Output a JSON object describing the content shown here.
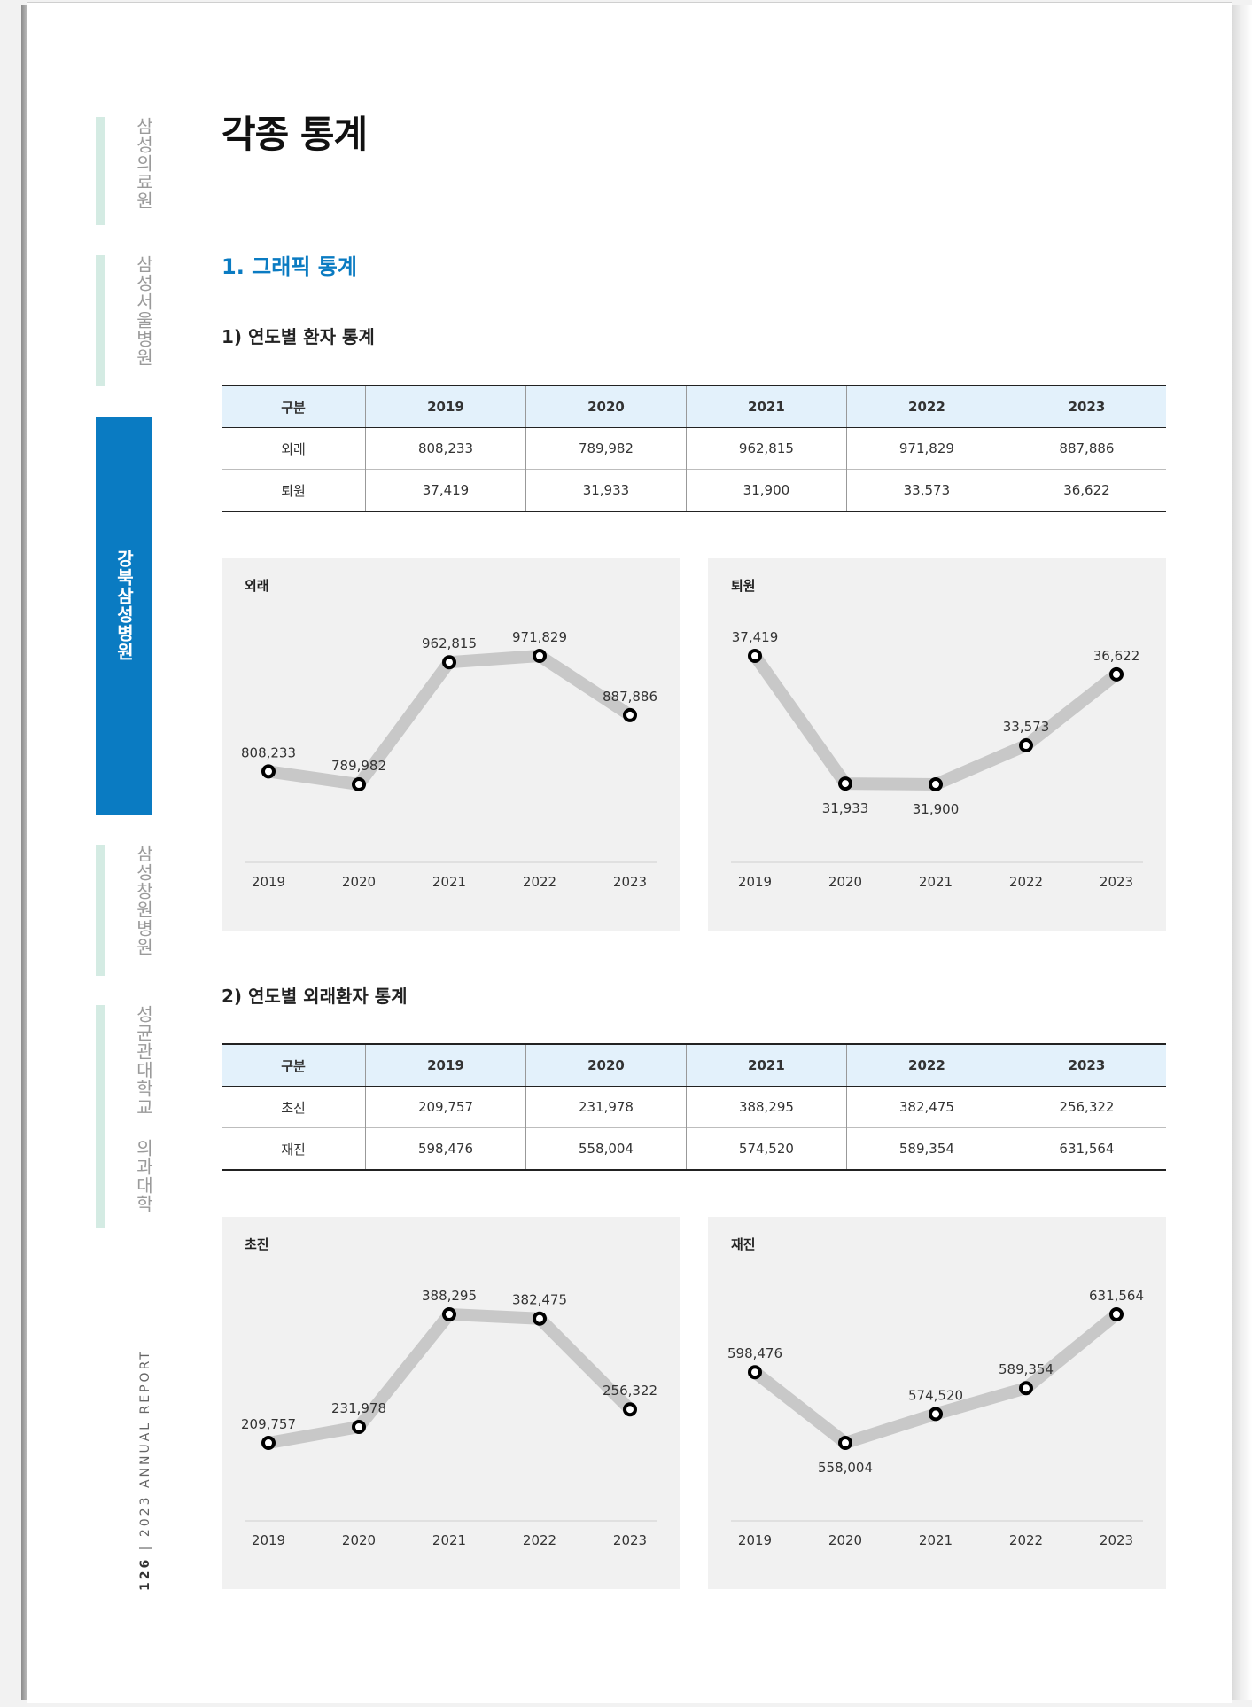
{
  "sidebar": {
    "items": [
      {
        "label": "삼성의료원",
        "active": false
      },
      {
        "label": "삼성서울병원",
        "active": false
      },
      {
        "label": "강북삼성병원",
        "active": true
      },
      {
        "label": "삼성창원병원",
        "active": false
      },
      {
        "label": "성균관대학교 의과대학",
        "active": false
      }
    ],
    "footer_page": "126",
    "footer_separator": "|",
    "footer_text": "2023 ANNUAL REPORT"
  },
  "page": {
    "title": "각종 통계",
    "section_title": "1. 그래픽 통계",
    "sub1": "1) 연도별 환자 통계",
    "sub2": "2) 연도별 외래환자 통계"
  },
  "colors": {
    "accent": "#0a7bc2",
    "table_header": "#e3f1fb",
    "side_bar": "#d4ebe3",
    "chart_bg": "#f1f1f1",
    "chart_line": "#c8c8c8"
  },
  "table1": {
    "headers": [
      "구분",
      "2019",
      "2020",
      "2021",
      "2022",
      "2023"
    ],
    "rows": [
      [
        "외래",
        "808,233",
        "789,982",
        "962,815",
        "971,829",
        "887,886"
      ],
      [
        "퇴원",
        "37,419",
        "31,933",
        "31,900",
        "33,573",
        "36,622"
      ]
    ]
  },
  "table2": {
    "headers": [
      "구분",
      "2019",
      "2020",
      "2021",
      "2022",
      "2023"
    ],
    "rows": [
      [
        "초진",
        "209,757",
        "231,978",
        "388,295",
        "382,475",
        "256,322"
      ],
      [
        "재진",
        "598,476",
        "558,004",
        "574,520",
        "589,354",
        "631,564"
      ]
    ]
  },
  "chart_data": [
    {
      "type": "line",
      "title": "외래",
      "x": [
        "2019",
        "2020",
        "2021",
        "2022",
        "2023"
      ],
      "values": [
        808233,
        789982,
        962815,
        971829,
        887886
      ],
      "labels": [
        "808,233",
        "789,982",
        "962,815",
        "971,829",
        "887,886"
      ],
      "label_side": [
        "above",
        "above",
        "above",
        "above",
        "above"
      ],
      "grid": false
    },
    {
      "type": "line",
      "title": "퇴원",
      "x": [
        "2019",
        "2020",
        "2021",
        "2022",
        "2023"
      ],
      "values": [
        37419,
        31933,
        31900,
        33573,
        36622
      ],
      "labels": [
        "37,419",
        "31,933",
        "31,900",
        "33,573",
        "36,622"
      ],
      "label_side": [
        "above",
        "below",
        "below",
        "above",
        "above"
      ],
      "grid": false
    },
    {
      "type": "line",
      "title": "초진",
      "x": [
        "2019",
        "2020",
        "2021",
        "2022",
        "2023"
      ],
      "values": [
        209757,
        231978,
        388295,
        382475,
        256322
      ],
      "labels": [
        "209,757",
        "231,978",
        "388,295",
        "382,475",
        "256,322"
      ],
      "label_side": [
        "above",
        "above",
        "above",
        "above",
        "above"
      ],
      "grid": false
    },
    {
      "type": "line",
      "title": "재진",
      "x": [
        "2019",
        "2020",
        "2021",
        "2022",
        "2023"
      ],
      "values": [
        598476,
        558004,
        574520,
        589354,
        631564
      ],
      "labels": [
        "598,476",
        "558,004",
        "574,520",
        "589,354",
        "631,564"
      ],
      "label_side": [
        "above",
        "below",
        "above",
        "above",
        "above"
      ],
      "grid": false
    }
  ]
}
